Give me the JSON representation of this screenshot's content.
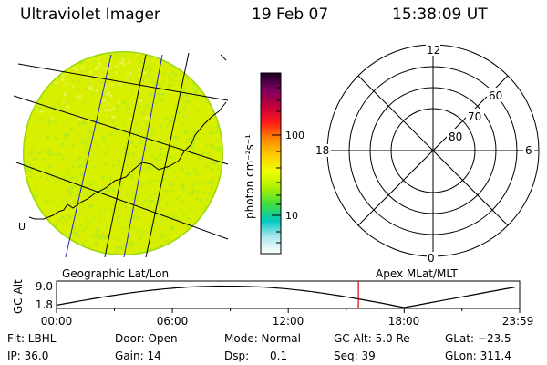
{
  "header": {
    "instrument": "Ultraviolet Imager",
    "date": "19 Feb 07",
    "time": "15:38:09 UT"
  },
  "left_panel": {
    "caption": "Geographic Lat/Lon",
    "coastline_label": "U"
  },
  "colorbar": {
    "label": "photon cm⁻²s⁻¹",
    "ticks": [
      "100",
      "10"
    ],
    "scale": "log",
    "colors": [
      "#1b0026",
      "#7a0060",
      "#c0003c",
      "#ff1a1a",
      "#ff8800",
      "#ffcc00",
      "#eeff00",
      "#aaf000",
      "#40dd40",
      "#00c8c0",
      "#b0e8f0",
      "#ffffff"
    ]
  },
  "right_panel": {
    "caption": "Apex MLat/MLT",
    "mlt_labels": [
      "12",
      "18",
      "6",
      "0"
    ],
    "mlat_labels": [
      "60",
      "70",
      "80"
    ]
  },
  "timeline": {
    "ylabel": "GC Alt",
    "y_ticks": [
      "9.0",
      "1.8"
    ],
    "x_ticks": [
      "00:00",
      "06:00",
      "12:00",
      "18:00",
      "23:59"
    ],
    "marker_time": "15:38",
    "marker_color": "#e00000"
  },
  "footer": {
    "flt": "Flt: LBHL",
    "door": "Door: Open",
    "mode": "Mode: Normal",
    "gcalt": "GC Alt: 5.0 Re",
    "glat": "GLat: −23.5",
    "ip": "IP: 36.0",
    "gain": "Gain: 14",
    "dsp": "Dsp:      0.1",
    "seq": "Seq: 39",
    "glon": "GLon: 311.4"
  },
  "colors": {
    "disk_fill": "#d8f000",
    "disk_speckle": "#aeea20",
    "disk_hot": "#f4f070",
    "grid_blue": "#0000c8",
    "ring_line": "#000000"
  }
}
